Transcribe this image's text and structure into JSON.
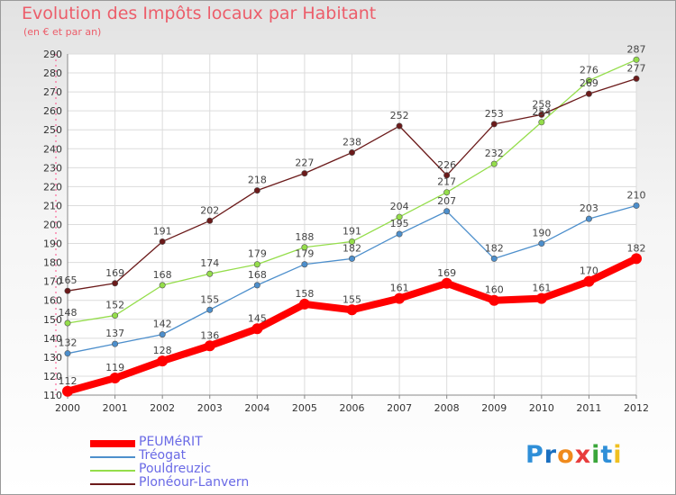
{
  "header": {
    "title": "Evolution des Impôts locaux par Habitant",
    "subtitle": "(en € et par an)"
  },
  "logo": {
    "letters": [
      "P",
      "r",
      "o",
      "x",
      "i",
      "t",
      "i"
    ],
    "colors": [
      "#2f8fd8",
      "#1a6fc0",
      "#f08a1c",
      "#e83c3c",
      "#3aa63a",
      "#2f8fd8",
      "#f0c020"
    ]
  },
  "chart_data": {
    "type": "line",
    "title": "Evolution des Impôts locaux par Habitant",
    "subtitle": "(en € et par an)",
    "x": [
      "2000",
      "2001",
      "2002",
      "2003",
      "2004",
      "2005",
      "2006",
      "2007",
      "2008",
      "2009",
      "2010",
      "2011",
      "2012"
    ],
    "ylim": [
      110,
      290
    ],
    "yticks": [
      "110",
      "120",
      "130",
      "140",
      "150",
      "160",
      "170",
      "180",
      "190",
      "200",
      "210",
      "220",
      "230",
      "240",
      "250",
      "260",
      "270",
      "280",
      "290"
    ],
    "grid": true,
    "legend_position": "bottom-left",
    "series": [
      {
        "name": "PEUMéRIT",
        "color": "#ff0000",
        "width": 8,
        "radius": 6,
        "values": [
          112,
          119,
          128,
          136,
          145,
          158,
          155,
          161,
          169,
          160,
          161,
          170,
          182
        ]
      },
      {
        "name": "Tréogat",
        "color": "#4d8fcc",
        "width": 1.3,
        "radius": 3.2,
        "values": [
          132,
          137,
          142,
          155,
          168,
          179,
          182,
          195,
          207,
          182,
          190,
          203,
          210
        ]
      },
      {
        "name": "Pouldreuzic",
        "color": "#94dd4a",
        "width": 1.3,
        "radius": 3.2,
        "values": [
          148,
          152,
          168,
          174,
          179,
          188,
          191,
          204,
          217,
          232,
          254,
          276,
          287
        ]
      },
      {
        "name": "Plonéour-Lanvern",
        "color": "#6b1a1a",
        "width": 1.3,
        "radius": 3.2,
        "values": [
          165,
          169,
          191,
          202,
          218,
          227,
          238,
          252,
          226,
          253,
          258,
          269,
          277
        ]
      }
    ]
  }
}
